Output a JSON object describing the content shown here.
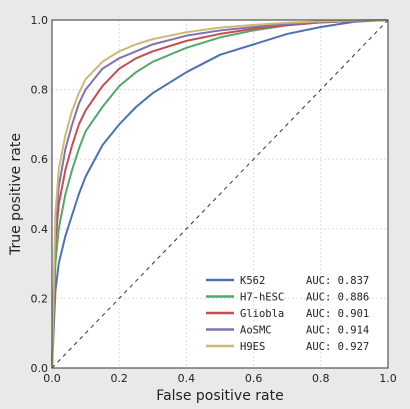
{
  "chart_data": {
    "type": "line",
    "title": "",
    "xlabel": "False positive rate",
    "ylabel": "True positive rate",
    "xlim": [
      0,
      1
    ],
    "ylim": [
      0,
      1
    ],
    "xticks": [
      "0.0",
      "0.2",
      "0.4",
      "0.6",
      "0.8",
      "1.0"
    ],
    "yticks": [
      "0.0",
      "0.2",
      "0.4",
      "0.6",
      "0.8",
      "1.0"
    ],
    "grid": true,
    "legend_position": "bottom-right",
    "diagonal": {
      "x": [
        0,
        1
      ],
      "y": [
        0,
        1
      ],
      "style": "dashed",
      "color": "#333333"
    },
    "x": [
      0,
      0.01,
      0.02,
      0.04,
      0.06,
      0.08,
      0.1,
      0.15,
      0.2,
      0.25,
      0.3,
      0.4,
      0.5,
      0.6,
      0.7,
      0.8,
      0.9,
      1.0
    ],
    "series": [
      {
        "name": "K562",
        "auc_label": "AUC: 0.837",
        "color": "#4c72b0",
        "values": [
          0,
          0.22,
          0.3,
          0.38,
          0.44,
          0.5,
          0.55,
          0.64,
          0.7,
          0.75,
          0.79,
          0.85,
          0.9,
          0.93,
          0.96,
          0.98,
          0.995,
          1.0
        ]
      },
      {
        "name": "H7-hESC",
        "auc_label": "AUC: 0.886",
        "color": "#55a868",
        "values": [
          0,
          0.3,
          0.4,
          0.5,
          0.57,
          0.63,
          0.68,
          0.75,
          0.81,
          0.85,
          0.88,
          0.92,
          0.95,
          0.97,
          0.985,
          0.993,
          0.998,
          1.0
        ]
      },
      {
        "name": "Glioblа",
        "auc_label": "AUC: 0.901",
        "color": "#c44e52",
        "values": [
          0,
          0.36,
          0.47,
          0.57,
          0.64,
          0.7,
          0.74,
          0.81,
          0.86,
          0.89,
          0.91,
          0.94,
          0.96,
          0.975,
          0.985,
          0.993,
          0.998,
          1.0
        ]
      },
      {
        "name": "AoSMC",
        "auc_label": "AUC: 0.914",
        "color": "#8172b2",
        "values": [
          0,
          0.4,
          0.52,
          0.63,
          0.7,
          0.76,
          0.8,
          0.86,
          0.89,
          0.91,
          0.93,
          0.955,
          0.97,
          0.98,
          0.988,
          0.995,
          0.998,
          1.0
        ]
      },
      {
        "name": "H9ES",
        "auc_label": "AUC: 0.927",
        "color": "#ccb974",
        "values": [
          0,
          0.44,
          0.57,
          0.67,
          0.74,
          0.79,
          0.83,
          0.88,
          0.91,
          0.93,
          0.945,
          0.965,
          0.978,
          0.986,
          0.992,
          0.996,
          0.999,
          1.0
        ]
      }
    ]
  }
}
